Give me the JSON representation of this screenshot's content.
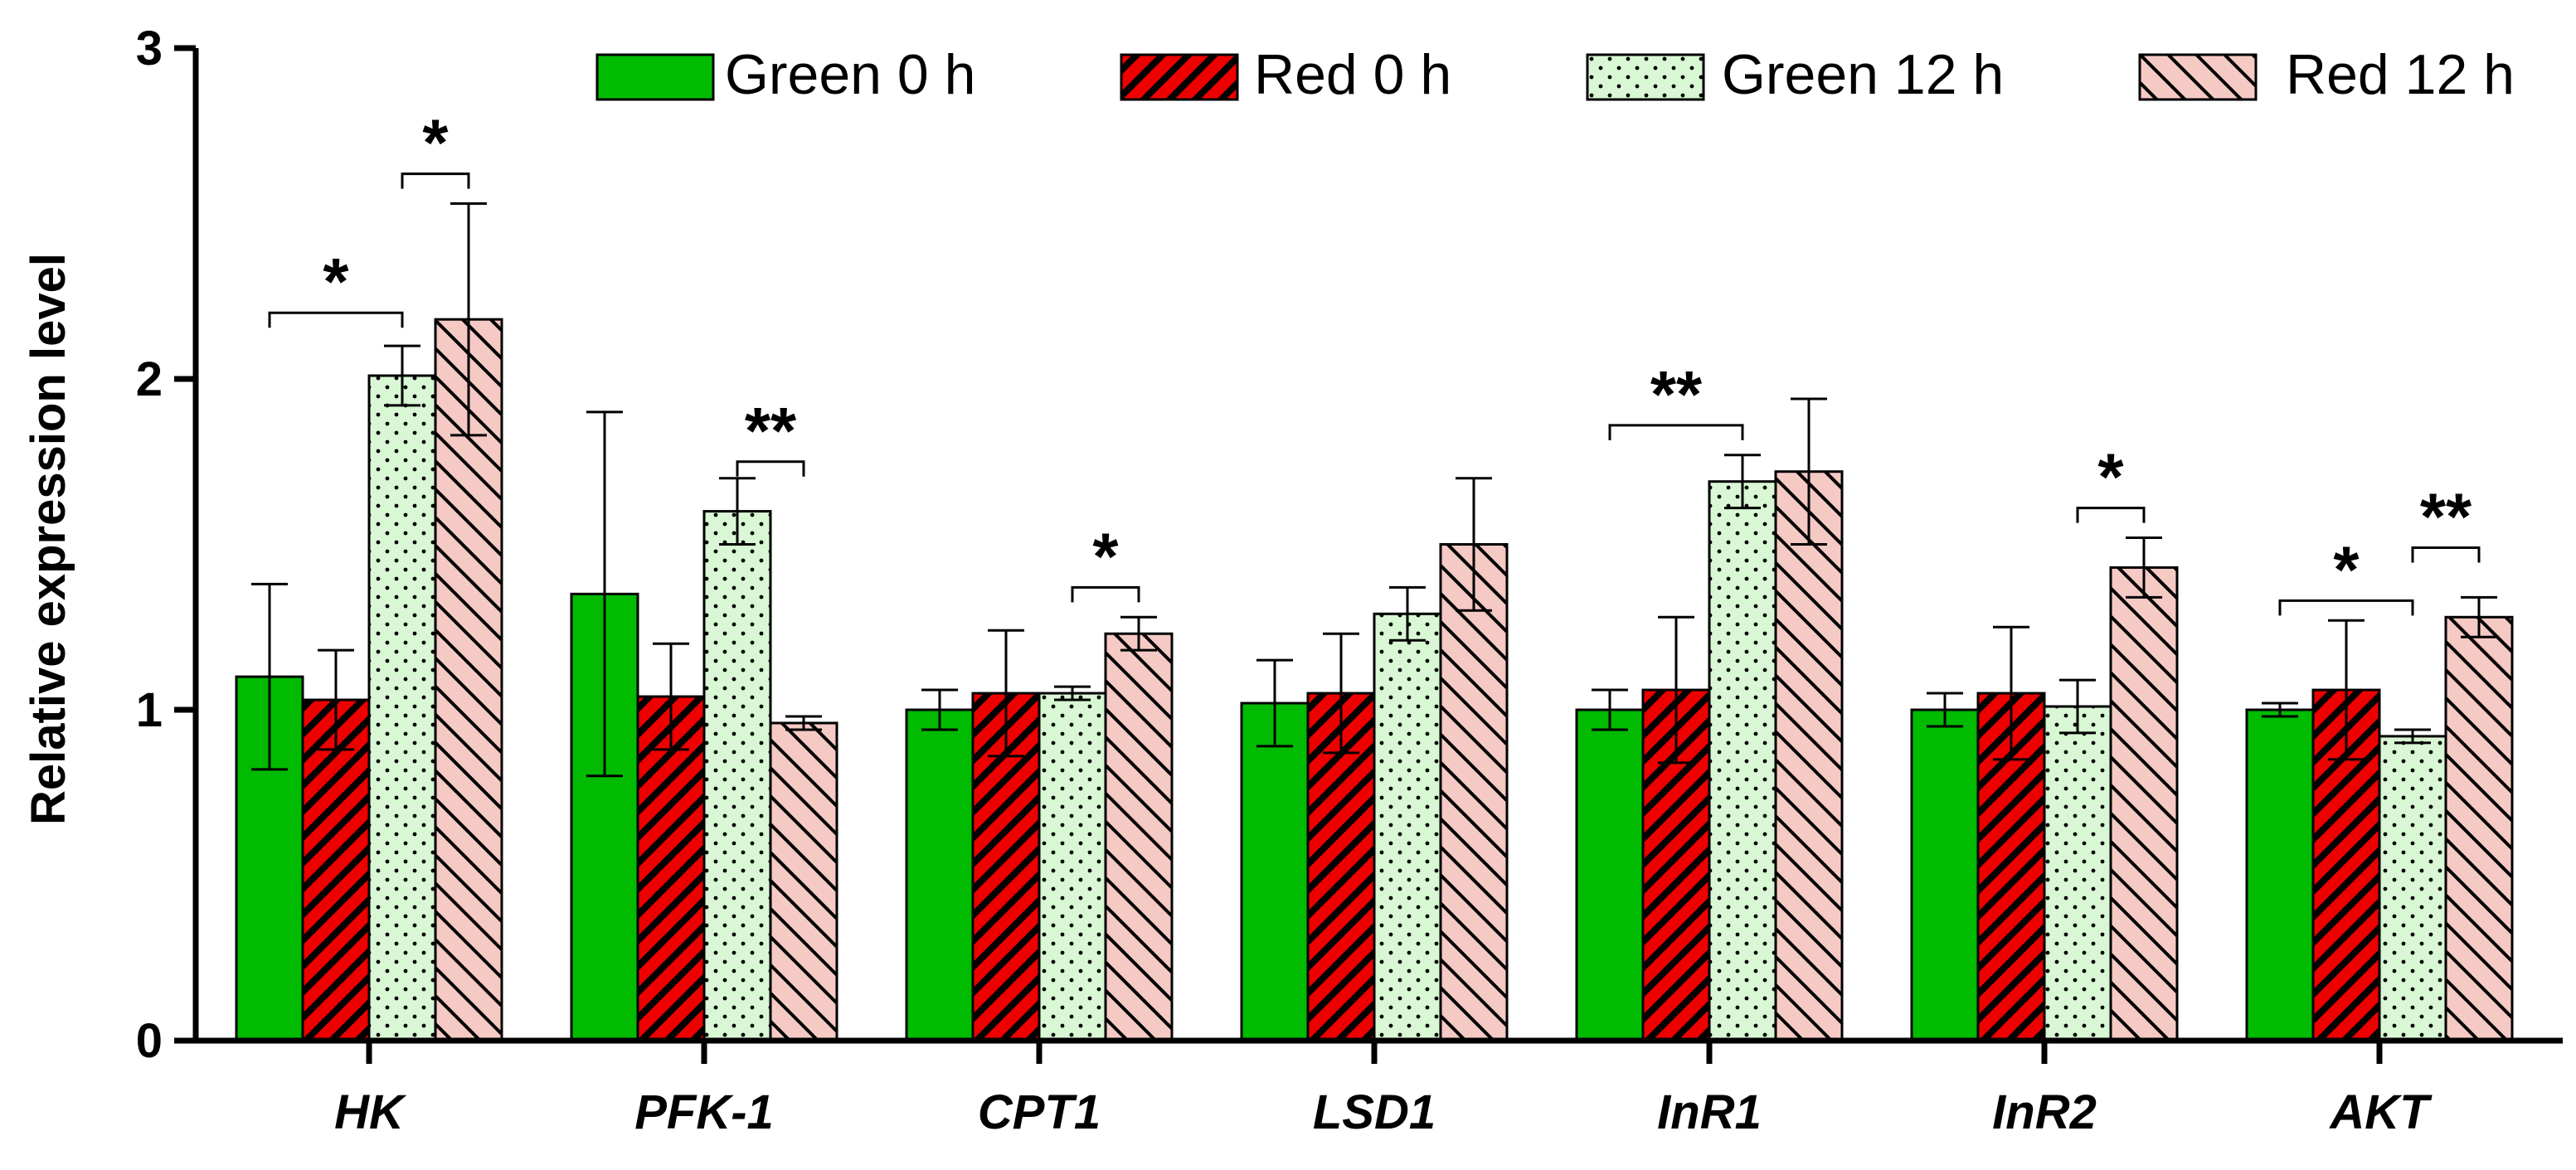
{
  "chart_data": {
    "type": "bar",
    "title": "",
    "xlabel": "",
    "ylabel": "Relative expression level",
    "ylim": [
      0,
      3
    ],
    "yticks": [
      0,
      1,
      2,
      3
    ],
    "grid": false,
    "legend_position": "top",
    "categories": [
      "HK",
      "PFK-1",
      "CPT1",
      "LSD1",
      "InR1",
      "InR2",
      "AKT"
    ],
    "series": [
      {
        "name": "Green 0 h",
        "color": "#00bb00",
        "pattern": "solid",
        "values": [
          1.1,
          1.35,
          1.0,
          1.02,
          1.0,
          1.0,
          1.0
        ],
        "errors": [
          0.28,
          0.55,
          0.06,
          0.13,
          0.06,
          0.05,
          0.02
        ]
      },
      {
        "name": "Red 0 h",
        "color": "#ee0000",
        "pattern": "hatch-dense",
        "values": [
          1.03,
          1.04,
          1.05,
          1.05,
          1.06,
          1.05,
          1.06
        ],
        "errors": [
          0.15,
          0.16,
          0.19,
          0.18,
          0.22,
          0.2,
          0.21
        ]
      },
      {
        "name": "Green 12 h",
        "color": "#d9f7d4",
        "pattern": "dots",
        "values": [
          2.01,
          1.6,
          1.05,
          1.29,
          1.69,
          1.01,
          0.92
        ],
        "errors": [
          0.09,
          0.1,
          0.02,
          0.08,
          0.08,
          0.08,
          0.02
        ]
      },
      {
        "name": "Red 12 h",
        "color": "#f5c9c4",
        "pattern": "hatch-light",
        "values": [
          2.18,
          0.96,
          1.23,
          1.5,
          1.72,
          1.43,
          1.28
        ],
        "errors": [
          0.35,
          0.02,
          0.05,
          0.2,
          0.22,
          0.09,
          0.06
        ]
      }
    ],
    "significance": [
      {
        "category": "HK",
        "from_series": 0,
        "to_series": 2,
        "y": 2.2,
        "label": "*"
      },
      {
        "category": "HK",
        "from_series": 2,
        "to_series": 3,
        "y": 2.62,
        "label": "*"
      },
      {
        "category": "PFK-1",
        "from_series": 2,
        "to_series": 3,
        "y": 1.75,
        "label": "**"
      },
      {
        "category": "CPT1",
        "from_series": 2,
        "to_series": 3,
        "y": 1.37,
        "label": "*"
      },
      {
        "category": "InR1",
        "from_series": 0,
        "to_series": 2,
        "y": 1.86,
        "label": "**"
      },
      {
        "category": "InR2",
        "from_series": 2,
        "to_series": 3,
        "y": 1.61,
        "label": "*"
      },
      {
        "category": "AKT",
        "from_series": 0,
        "to_series": 2,
        "y": 1.33,
        "label": "*"
      },
      {
        "category": "AKT",
        "from_series": 2,
        "to_series": 3,
        "y": 1.49,
        "label": "**"
      }
    ]
  }
}
